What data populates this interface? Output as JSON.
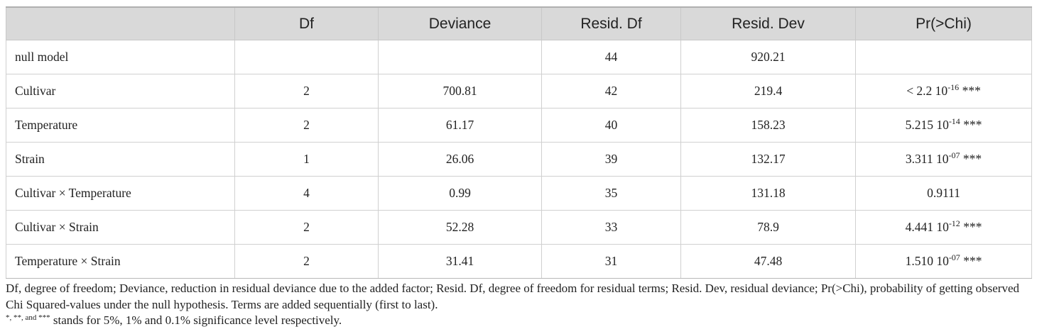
{
  "table": {
    "headers": [
      "",
      "Df",
      "Deviance",
      "Resid. Df",
      "Resid. Dev",
      "Pr(>Chi)"
    ],
    "rows": [
      {
        "term": "null model",
        "df": "",
        "deviance": "",
        "resid_df": "44",
        "resid_dev": "920.21",
        "p_base": "",
        "p_exp": "",
        "p_sig": ""
      },
      {
        "term": "Cultivar",
        "df": "2",
        "deviance": "700.81",
        "resid_df": "42",
        "resid_dev": "219.4",
        "p_base": "< 2.2 10",
        "p_exp": "-16",
        "p_sig": " ***"
      },
      {
        "term": "Temperature",
        "df": "2",
        "deviance": "61.17",
        "resid_df": "40",
        "resid_dev": "158.23",
        "p_base": "5.215 10",
        "p_exp": "-14",
        "p_sig": " ***"
      },
      {
        "term": "Strain",
        "df": "1",
        "deviance": "26.06",
        "resid_df": "39",
        "resid_dev": "132.17",
        "p_base": "3.311 10",
        "p_exp": "-07",
        "p_sig": " ***"
      },
      {
        "term": "Cultivar × Temperature",
        "df": "4",
        "deviance": "0.99",
        "resid_df": "35",
        "resid_dev": "131.18",
        "p_base": "0.9111",
        "p_exp": "",
        "p_sig": ""
      },
      {
        "term": "Cultivar × Strain",
        "df": "2",
        "deviance": "52.28",
        "resid_df": "33",
        "resid_dev": "78.9",
        "p_base": "4.441 10",
        "p_exp": "-12",
        "p_sig": " ***"
      },
      {
        "term": "Temperature × Strain",
        "df": "2",
        "deviance": "31.41",
        "resid_df": "31",
        "resid_dev": "47.48",
        "p_base": "1.510 10",
        "p_exp": "-07",
        "p_sig": " ***"
      }
    ]
  },
  "footnotes": {
    "abbreviations": "Df, degree of freedom; Deviance, reduction in residual deviance due to the added factor; Resid. Df, degree of freedom for residual terms; Resid. Dev, residual deviance; Pr(>Chi), probability of getting observed Chi Squared-values under the null hypothesis. Terms are added sequentially (first to last).",
    "sig_marks": "*, **, and ***",
    "sig_text": " stands for 5%, 1% and 0.1% significance level respectively."
  }
}
